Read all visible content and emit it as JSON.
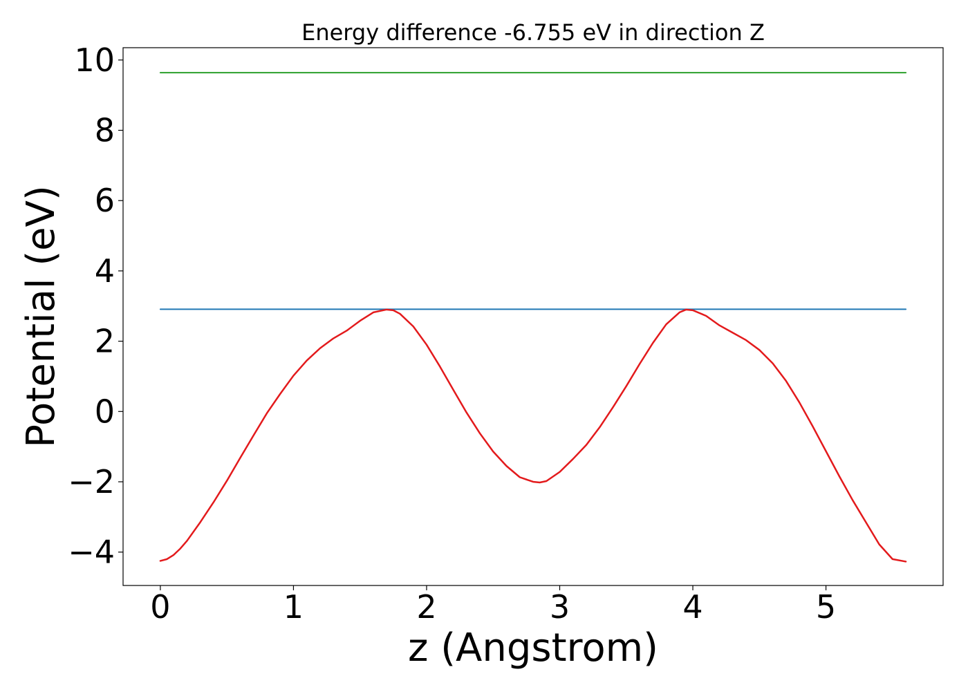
{
  "chart_data": {
    "type": "line",
    "title": "Energy difference -6.755 eV in direction Z",
    "xlabel": "z (Angstrom)",
    "ylabel": "Potential (eV)",
    "xlim": [
      -0.28,
      5.88
    ],
    "ylim": [
      -4.95,
      10.35
    ],
    "x_ticks": [
      0,
      1,
      2,
      3,
      4,
      5
    ],
    "x_tick_labels": [
      "0",
      "1",
      "2",
      "3",
      "4",
      "5"
    ],
    "y_ticks": [
      -4,
      -2,
      0,
      2,
      4,
      6,
      8,
      10
    ],
    "y_tick_labels": [
      "−4",
      "−2",
      "0",
      "2",
      "4",
      "6",
      "8",
      "10"
    ],
    "grid": false,
    "legend": "none",
    "series": [
      {
        "color": "#2ca02c",
        "x": [
          0,
          5.6
        ],
        "y": [
          9.64,
          9.64
        ]
      },
      {
        "color": "#1f77b4",
        "x": [
          0,
          5.6
        ],
        "y": [
          2.91,
          2.91
        ]
      },
      {
        "color": "#e31a1c",
        "x": [
          0,
          0.05,
          0.1,
          0.15,
          0.2,
          0.3,
          0.4,
          0.5,
          0.6,
          0.7,
          0.8,
          0.9,
          1.0,
          1.1,
          1.2,
          1.3,
          1.4,
          1.5,
          1.6,
          1.7,
          1.75,
          1.8,
          1.9,
          2.0,
          2.1,
          2.2,
          2.3,
          2.4,
          2.5,
          2.6,
          2.7,
          2.8,
          2.85,
          2.9,
          3.0,
          3.1,
          3.2,
          3.3,
          3.4,
          3.5,
          3.6,
          3.7,
          3.8,
          3.9,
          3.95,
          4.0,
          4.1,
          4.2,
          4.3,
          4.4,
          4.5,
          4.6,
          4.7,
          4.8,
          4.9,
          5.0,
          5.1,
          5.2,
          5.3,
          5.4,
          5.5,
          5.6
        ],
        "y": [
          -4.25,
          -4.2,
          -4.08,
          -3.9,
          -3.68,
          -3.15,
          -2.58,
          -1.97,
          -1.32,
          -0.68,
          -0.05,
          0.5,
          1.02,
          1.45,
          1.8,
          2.08,
          2.3,
          2.58,
          2.82,
          2.9,
          2.88,
          2.78,
          2.42,
          1.9,
          1.28,
          0.62,
          -0.03,
          -0.62,
          -1.14,
          -1.55,
          -1.87,
          -2.0,
          -2.02,
          -1.98,
          -1.72,
          -1.35,
          -0.95,
          -0.45,
          0.12,
          0.72,
          1.35,
          1.95,
          2.48,
          2.82,
          2.9,
          2.88,
          2.72,
          2.45,
          2.24,
          2.03,
          1.75,
          1.37,
          0.87,
          0.26,
          -0.42,
          -1.13,
          -1.84,
          -2.52,
          -3.15,
          -3.78,
          -4.2,
          -4.27
        ]
      }
    ]
  }
}
